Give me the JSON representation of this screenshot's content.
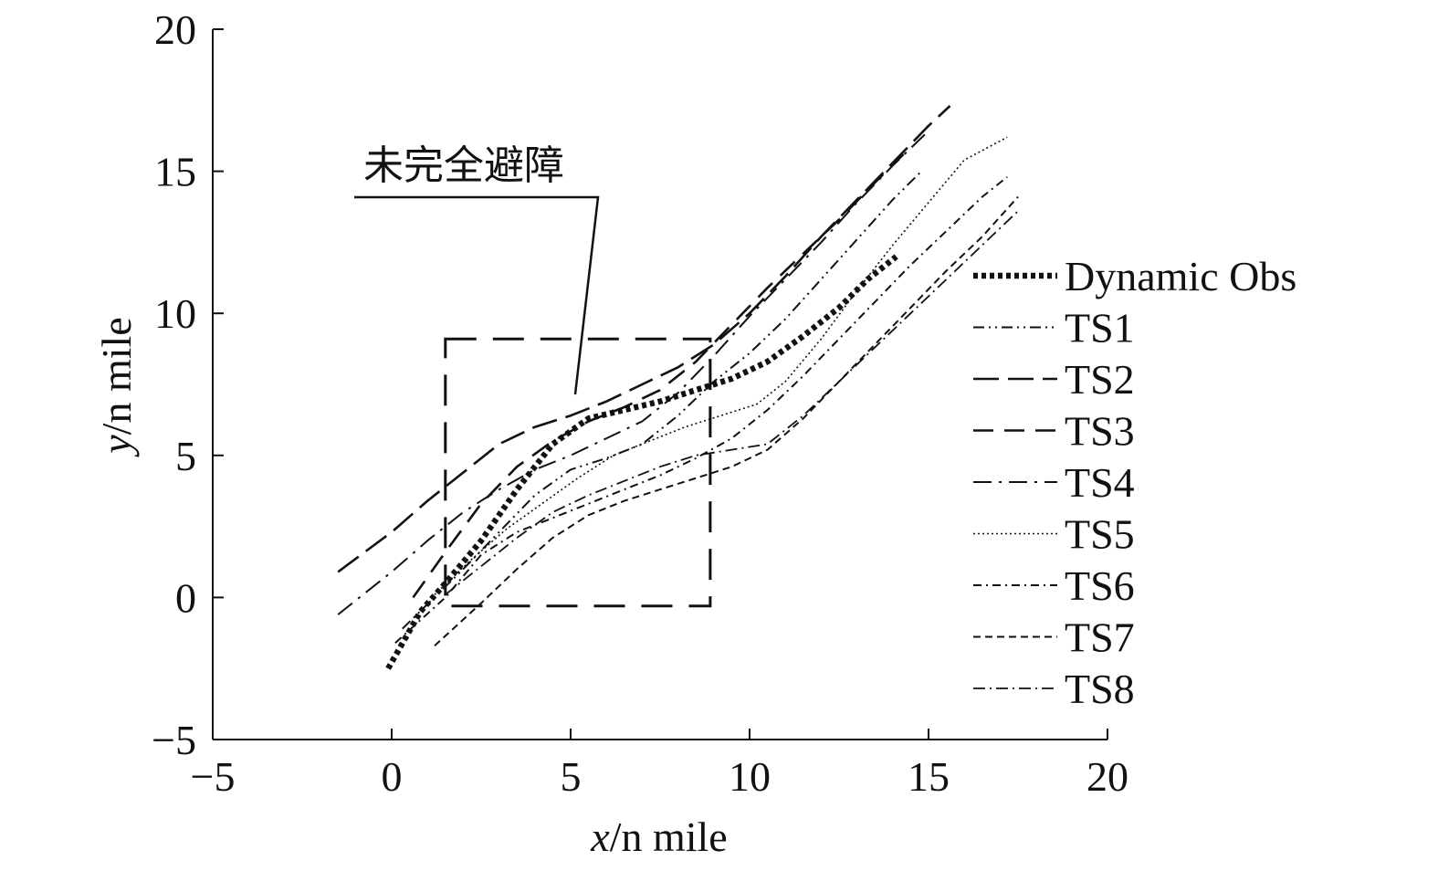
{
  "chart_data": {
    "type": "line",
    "title": "",
    "xlabel": {
      "var": "x",
      "unit": "/n mile"
    },
    "ylabel": {
      "var": "y",
      "unit": "/n mile"
    },
    "xlim": [
      -5,
      20
    ],
    "ylim": [
      -5,
      20
    ],
    "xticks": [
      -5,
      0,
      5,
      10,
      15,
      20
    ],
    "yticks": [
      -5,
      0,
      5,
      10,
      15,
      20
    ],
    "grid": false,
    "legend_position": "right",
    "annotation": {
      "text": "未完全避障",
      "region": {
        "x": [
          1.5,
          8.9
        ],
        "y": [
          -0.3,
          9.1
        ]
      }
    },
    "series": [
      {
        "name": "Dynamic Obs",
        "style": "heavy-dotted",
        "points": [
          [
            -0.1,
            -2.5
          ],
          [
            0.8,
            -0.5
          ],
          [
            1.5,
            0.5
          ],
          [
            2.5,
            2.0
          ],
          [
            3.5,
            3.8
          ],
          [
            4.5,
            5.4
          ],
          [
            5.5,
            6.3
          ],
          [
            6.5,
            6.6
          ],
          [
            7.5,
            6.9
          ],
          [
            8.5,
            7.3
          ],
          [
            9.5,
            7.7
          ],
          [
            10.5,
            8.3
          ],
          [
            11.5,
            9.2
          ],
          [
            12.5,
            10.2
          ],
          [
            13.3,
            11.2
          ],
          [
            14.1,
            12.0
          ]
        ]
      },
      {
        "name": "TS1",
        "style": "dash-dot-dot",
        "points": [
          [
            0.3,
            -1.1
          ],
          [
            2,
            1
          ],
          [
            3,
            2.3
          ],
          [
            4,
            3.6
          ],
          [
            5,
            4.5
          ],
          [
            6,
            4.9
          ],
          [
            7,
            5.4
          ],
          [
            8,
            6.4
          ],
          [
            9,
            7.6
          ],
          [
            10,
            8.6
          ],
          [
            11,
            9.8
          ],
          [
            12,
            11.2
          ],
          [
            13,
            12.6
          ],
          [
            14,
            14.0
          ],
          [
            14.8,
            15.0
          ]
        ]
      },
      {
        "name": "TS2",
        "style": "long-dash",
        "points": [
          [
            -1.5,
            0.9
          ],
          [
            0,
            2.3
          ],
          [
            1,
            3.4
          ],
          [
            2,
            4.4
          ],
          [
            3,
            5.4
          ],
          [
            4,
            6.0
          ],
          [
            5,
            6.4
          ],
          [
            6,
            6.9
          ],
          [
            7,
            7.5
          ],
          [
            8,
            8.1
          ],
          [
            9,
            8.9
          ],
          [
            10,
            10.0
          ],
          [
            11,
            11.3
          ],
          [
            12,
            12.7
          ],
          [
            13,
            14.0
          ],
          [
            14,
            15.3
          ],
          [
            15,
            16.6
          ],
          [
            15.6,
            17.3
          ]
        ]
      },
      {
        "name": "TS3",
        "style": "dash",
        "points": [
          [
            0.6,
            0
          ],
          [
            1.5,
            1.6
          ],
          [
            2.5,
            3.3
          ],
          [
            3.5,
            4.6
          ],
          [
            4.5,
            5.5
          ],
          [
            5.5,
            6.2
          ],
          [
            6.5,
            6.7
          ],
          [
            7.5,
            7.3
          ],
          [
            8.5,
            8.3
          ],
          [
            9.5,
            9.6
          ],
          [
            10.5,
            10.9
          ],
          [
            11.5,
            12.1
          ],
          [
            12.5,
            13.3
          ],
          [
            13.5,
            14.6
          ],
          [
            14.3,
            15.6
          ]
        ]
      },
      {
        "name": "TS4",
        "style": "dash-dot",
        "points": [
          [
            -1.5,
            -0.6
          ],
          [
            0,
            0.9
          ],
          [
            1,
            2.0
          ],
          [
            2,
            3.0
          ],
          [
            3,
            3.8
          ],
          [
            4,
            4.5
          ],
          [
            5,
            5.0
          ],
          [
            6,
            5.6
          ],
          [
            7,
            6.2
          ],
          [
            8,
            7.2
          ],
          [
            9,
            8.5
          ],
          [
            10,
            9.9
          ],
          [
            11,
            11.2
          ],
          [
            12,
            12.5
          ],
          [
            13,
            13.9
          ],
          [
            14,
            15.2
          ],
          [
            14.9,
            16.3
          ]
        ]
      },
      {
        "name": "TS5",
        "style": "fine-dot",
        "points": [
          [
            1.2,
            0.1
          ],
          [
            2.2,
            1.3
          ],
          [
            3.2,
            2.4
          ],
          [
            4.2,
            3.3
          ],
          [
            5.2,
            4.2
          ],
          [
            6.2,
            5.0
          ],
          [
            7.2,
            5.5
          ],
          [
            8.2,
            6.0
          ],
          [
            9.2,
            6.4
          ],
          [
            10.2,
            6.8
          ],
          [
            11,
            7.6
          ],
          [
            12,
            9.1
          ],
          [
            13,
            10.8
          ],
          [
            14,
            12.4
          ],
          [
            15,
            13.9
          ],
          [
            16,
            15.4
          ],
          [
            17.2,
            16.2
          ]
        ]
      },
      {
        "name": "TS6",
        "style": "short-dash-dot",
        "points": [
          [
            0.1,
            -1.6
          ],
          [
            1.5,
            0
          ],
          [
            2.5,
            1.5
          ],
          [
            3.5,
            2.3
          ],
          [
            4.5,
            2.8
          ],
          [
            5.5,
            3.3
          ],
          [
            6.5,
            3.8
          ],
          [
            7.5,
            4.3
          ],
          [
            8.5,
            4.9
          ],
          [
            9.5,
            5.6
          ],
          [
            10.5,
            6.6
          ],
          [
            11.5,
            7.8
          ],
          [
            12.5,
            9.1
          ],
          [
            13.5,
            10.4
          ],
          [
            14.5,
            11.7
          ],
          [
            15.5,
            12.9
          ],
          [
            16.5,
            14.1
          ],
          [
            17.2,
            14.8
          ]
        ]
      },
      {
        "name": "TS7",
        "style": "short-dash",
        "points": [
          [
            1.2,
            -1.7
          ],
          [
            2.5,
            -0.2
          ],
          [
            3.5,
            1.0
          ],
          [
            4.5,
            2.1
          ],
          [
            5.5,
            2.9
          ],
          [
            6.5,
            3.4
          ],
          [
            7.5,
            3.8
          ],
          [
            8.5,
            4.2
          ],
          [
            9.5,
            4.6
          ],
          [
            10.5,
            5.2
          ],
          [
            11.5,
            6.3
          ],
          [
            12.5,
            7.6
          ],
          [
            13.5,
            8.9
          ],
          [
            14.5,
            10.2
          ],
          [
            15.5,
            11.5
          ],
          [
            16.5,
            12.7
          ],
          [
            17.5,
            14.1
          ]
        ]
      },
      {
        "name": "TS8",
        "style": "dash-dot-fine",
        "points": [
          [
            1.5,
            0.1
          ],
          [
            2.5,
            1.1
          ],
          [
            3.5,
            2.1
          ],
          [
            4.5,
            3.0
          ],
          [
            5.5,
            3.6
          ],
          [
            6.5,
            4.1
          ],
          [
            7.5,
            4.6
          ],
          [
            8.5,
            5.0
          ],
          [
            9.5,
            5.2
          ],
          [
            10.5,
            5.4
          ],
          [
            11.5,
            6.4
          ],
          [
            12.5,
            7.6
          ],
          [
            13.5,
            8.8
          ],
          [
            14.5,
            10.0
          ],
          [
            15.5,
            11.2
          ],
          [
            16.5,
            12.4
          ],
          [
            17.5,
            13.6
          ]
        ]
      }
    ]
  }
}
